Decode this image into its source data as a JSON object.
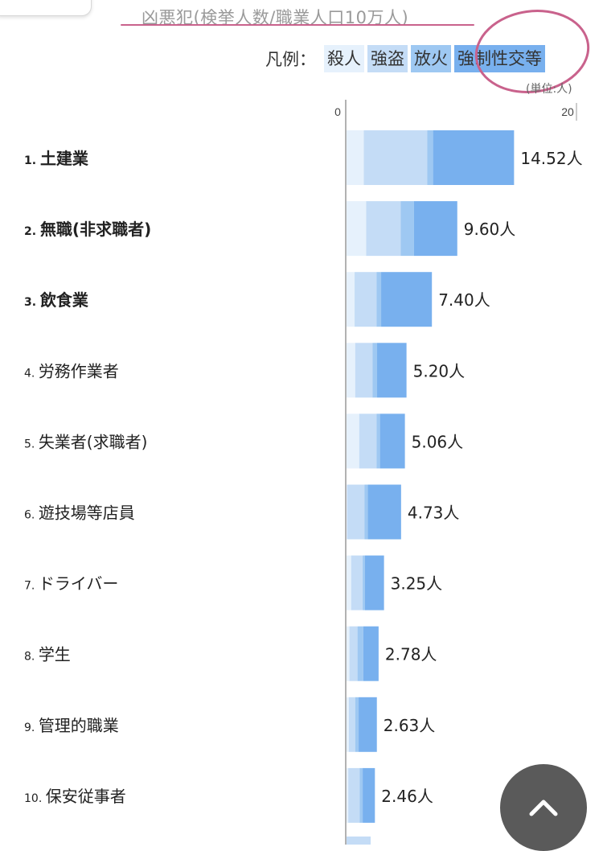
{
  "header": {
    "title": "凶悪犯(検挙人数/職業人口10万人)"
  },
  "legend": {
    "label": "凡例：",
    "items": [
      {
        "name": "殺人",
        "color": "#e6f1fc"
      },
      {
        "name": "強盗",
        "color": "#c4dcf6"
      },
      {
        "name": "放火",
        "color": "#9ec8f2"
      },
      {
        "name": "強制性交等",
        "color": "#78b0ee"
      }
    ]
  },
  "unit_note": "(単位:人)",
  "icons": {
    "scroll_top": "chevron-up-icon"
  },
  "chart_data": {
    "type": "bar",
    "orientation": "horizontal",
    "stacked": true,
    "xlim": [
      0,
      20
    ],
    "xticks": [
      "0",
      "20"
    ],
    "categories": [
      "土建業",
      "無職(非求職者)",
      "飲食業",
      "労務作業者",
      "失業者(求職者)",
      "遊技場等店員",
      "ドライバー",
      "学生",
      "管理的職業",
      "保安従事者"
    ],
    "ranks": [
      "1.",
      "2.",
      "3.",
      "4.",
      "5.",
      "6.",
      "7.",
      "8.",
      "9.",
      "10."
    ],
    "bold_top": 3,
    "series": [
      {
        "name": "殺人",
        "values": [
          1.5,
          1.7,
          0.7,
          0.75,
          1.1,
          0.05,
          0.4,
          0.25,
          0.2,
          0.15
        ]
      },
      {
        "name": "強盗",
        "values": [
          5.5,
          3.0,
          1.9,
          1.5,
          1.5,
          1.5,
          1.0,
          0.7,
          0.55,
          1.0
        ]
      },
      {
        "name": "放火",
        "values": [
          0.5,
          1.15,
          0.4,
          0.4,
          0.3,
          0.3,
          0.2,
          0.5,
          0.3,
          0.25
        ]
      },
      {
        "name": "強制性交等",
        "values": [
          7.02,
          3.75,
          4.4,
          2.55,
          2.16,
          2.88,
          1.65,
          1.33,
          1.58,
          1.06
        ]
      }
    ],
    "totals": [
      "14.52人",
      "9.60人",
      "7.40人",
      "5.20人",
      "5.06人",
      "4.73人",
      "3.25人",
      "2.78人",
      "2.63人",
      "2.46人"
    ]
  }
}
